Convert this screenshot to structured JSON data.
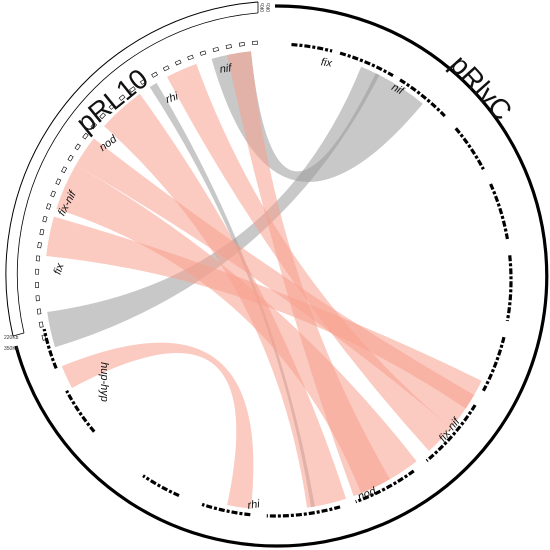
{
  "plasmids": [
    {
      "name": "pRL10",
      "scale_start": "220Kb",
      "scale_end": "0Kb"
    },
    {
      "name": "pRlvC",
      "scale_start": "0Kb",
      "scale_end": "350Kb"
    }
  ],
  "region_labels": {
    "prl10": [
      "nif",
      "rhi",
      "nod",
      "fix-nif",
      "fix"
    ],
    "prlvc": [
      "fix",
      "nif",
      "hup-hyp",
      "rhi",
      "nod",
      "fix-nif"
    ]
  },
  "colors": {
    "gray_link": "#9a9a9a",
    "red_link": "#f8a08e",
    "outline": "#000000"
  }
}
